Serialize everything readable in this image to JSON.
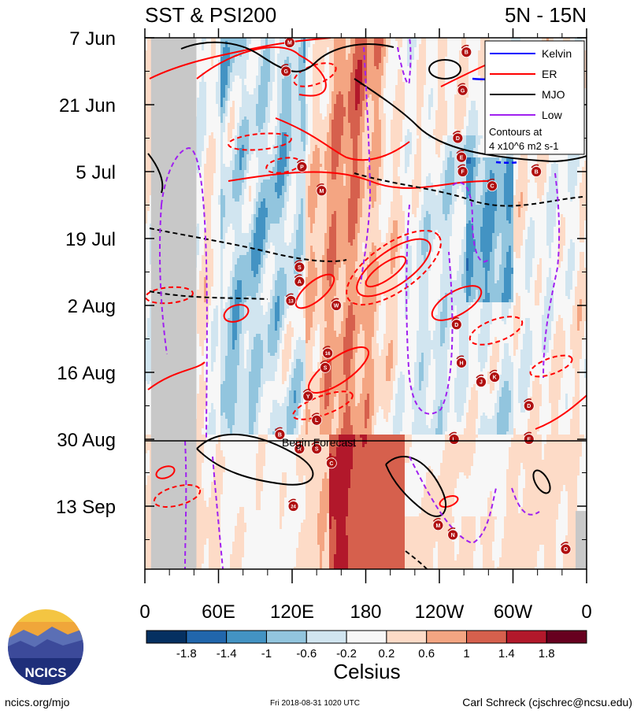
{
  "header": {
    "title_left": "SST & PSI200",
    "title_right": "5N - 15N"
  },
  "chart_data": {
    "type": "heatmap",
    "title": "SST & PSI200",
    "region": "5N - 15N",
    "y_axis": {
      "tick_labels": [
        "7 Jun",
        "21 Jun",
        "5 Jul",
        "19 Jul",
        "2 Aug",
        "16 Aug",
        "30 Aug",
        "13 Sep"
      ],
      "direction": "time increases downward"
    },
    "x_axis": {
      "tick_labels": [
        "0",
        "60E",
        "120E",
        "180",
        "120W",
        "60W",
        "0"
      ],
      "range_deg_east": [
        0,
        360
      ]
    },
    "forecast_line": {
      "date": "30 Aug",
      "label": "Begin Forecast"
    },
    "legend": {
      "placement": "top-right",
      "entries": [
        {
          "name": "Kelvin",
          "color": "#0000ff",
          "style": "solid"
        },
        {
          "name": "ER",
          "color": "#ff0000",
          "style": "solid"
        },
        {
          "name": "MJO",
          "color": "#000000",
          "style": "solid"
        },
        {
          "name": "Low",
          "color": "#a020f0",
          "style": "solid"
        }
      ],
      "note_line1": "Contours at",
      "note_line2": "4 x10^6 m2 s-1"
    },
    "colorbar": {
      "levels": [
        "-1.8",
        "-1.4",
        "-1",
        "-0.6",
        "-0.2",
        "0.2",
        "0.6",
        "1",
        "1.4",
        "1.8"
      ],
      "colors": [
        "#053061",
        "#2166ac",
        "#4393c3",
        "#92c5de",
        "#d1e5f0",
        "#f7f7f7",
        "#fddbc7",
        "#f4a582",
        "#d6604d",
        "#b2182b",
        "#67001f"
      ],
      "label": "Celsius"
    },
    "land_color": "#c8c8c8",
    "storm_markers": [
      {
        "id": "M",
        "lon": 118,
        "day": 1
      },
      {
        "id": "G",
        "lon": 115,
        "day": 7
      },
      {
        "id": "P",
        "lon": 128,
        "day": 27
      },
      {
        "id": "M",
        "lon": 144,
        "day": 32
      },
      {
        "id": "S",
        "lon": 126,
        "day": 48
      },
      {
        "id": "A",
        "lon": 126,
        "day": 51
      },
      {
        "id": "13",
        "lon": 119,
        "day": 55
      },
      {
        "id": "W",
        "lon": 156,
        "day": 56
      },
      {
        "id": "16",
        "lon": 149,
        "day": 66
      },
      {
        "id": "S",
        "lon": 147,
        "day": 69
      },
      {
        "id": "Y",
        "lon": 133,
        "day": 75
      },
      {
        "id": "L",
        "lon": 140,
        "day": 80
      },
      {
        "id": "B",
        "lon": 110,
        "day": 83
      },
      {
        "id": "R",
        "lon": 126,
        "day": 86
      },
      {
        "id": "S",
        "lon": 140,
        "day": 86
      },
      {
        "id": "C",
        "lon": 152,
        "day": 89
      },
      {
        "id": "24",
        "lon": 121,
        "day": 98
      },
      {
        "id": "D",
        "lon": 255,
        "day": 21
      },
      {
        "id": "E",
        "lon": 258,
        "day": 25
      },
      {
        "id": "F",
        "lon": 259,
        "day": 28
      },
      {
        "id": "G",
        "lon": 259,
        "day": 11
      },
      {
        "id": "B",
        "lon": 262,
        "day": 3
      },
      {
        "id": "C",
        "lon": 283,
        "day": 31
      },
      {
        "id": "B",
        "lon": 319,
        "day": 28
      },
      {
        "id": "D",
        "lon": 254,
        "day": 60
      },
      {
        "id": "H",
        "lon": 258,
        "day": 68
      },
      {
        "id": "J",
        "lon": 274,
        "day": 72
      },
      {
        "id": "K",
        "lon": 285,
        "day": 71
      },
      {
        "id": "L",
        "lon": 252,
        "day": 84
      },
      {
        "id": "D",
        "lon": 313,
        "day": 77
      },
      {
        "id": "E",
        "lon": 313,
        "day": 84
      },
      {
        "id": "M",
        "lon": 239,
        "day": 102
      },
      {
        "id": "N",
        "lon": 251,
        "day": 104
      },
      {
        "id": "O",
        "lon": 343,
        "day": 107
      }
    ]
  },
  "footer": {
    "logo_text": "NCICS",
    "url": "ncics.org/mjo",
    "timestamp": "Fri 2018-08-31 1020 UTC",
    "author": "Carl Schreck (cjschrec@ncsu.edu)"
  }
}
